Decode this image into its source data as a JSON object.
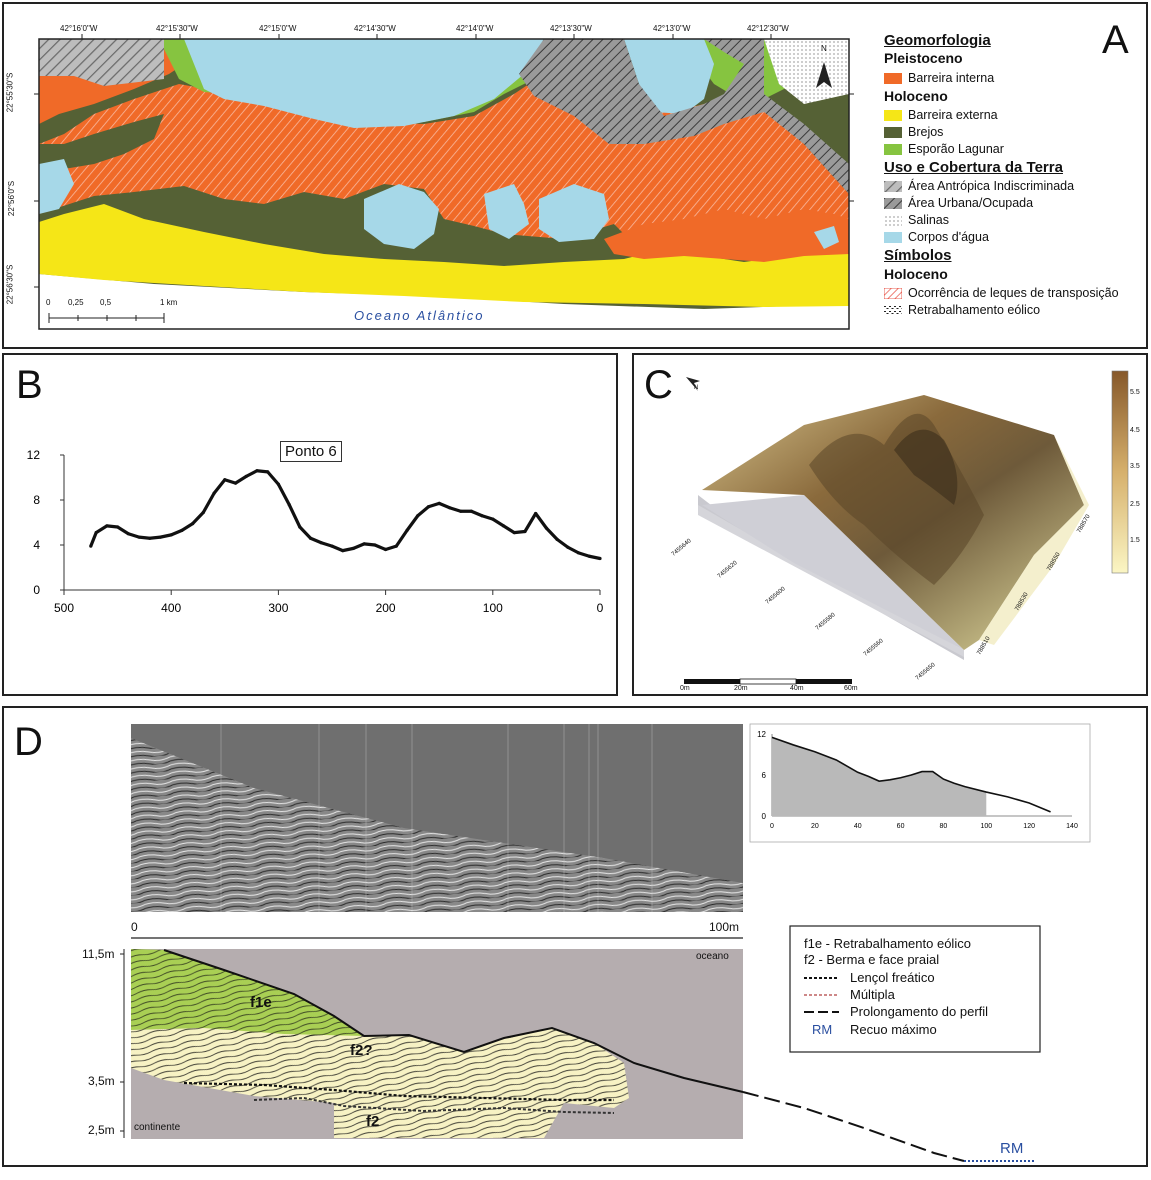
{
  "panels": {
    "a": "A",
    "b": "B",
    "c": "C",
    "d": "D"
  },
  "colors": {
    "barreira_interna": "#f06a28",
    "barreira_externa": "#f5e617",
    "brejos": "#556135",
    "esporao": "#86c440",
    "agua": "#a6d8e8",
    "urbana": "#8e8e8e",
    "antropica": "#a7a7a7",
    "f1e": "#a9cf54",
    "f2": "#f7f2c4"
  },
  "map": {
    "lon_ticks": [
      "42°16'0\"W",
      "42°15'30\"W",
      "42°15'0\"W",
      "42°14'30\"W",
      "42°14'0\"W",
      "42°13'30\"W",
      "42°13'0\"W",
      "42°12'30\"W"
    ],
    "lat_ticks": [
      "22°55'30\"S",
      "22°56'0\"S",
      "22°56'30\"S"
    ],
    "scale_labels": [
      "0",
      "0,25",
      "0,5",
      "1 km"
    ],
    "ocean": "Oceano Atlântico",
    "north": "N"
  },
  "legend": {
    "geomorfologia": "Geomorfologia",
    "pleistoceno": "Pleistoceno",
    "barreira_interna": "Barreira interna",
    "holoceno": "Holoceno",
    "barreira_externa": "Barreira externa",
    "brejos": "Brejos",
    "esporao": "Esporão Lagunar",
    "uso": "Uso e Cobertura da Terra",
    "antropica": "Área Antrópica Indiscriminada",
    "urbana": "Área Urbana/Ocupada",
    "salinas": "Salinas",
    "corpos": "Corpos d'água",
    "simbolos": "Símbolos",
    "holoceno2": "Holoceno",
    "leques": "Ocorrência de leques de transposição",
    "eolico": "Retrabalhamento eólico"
  },
  "profile_b": {
    "label": "Ponto 6",
    "x_ticks": [
      "500",
      "400",
      "300",
      "200",
      "100",
      "0"
    ],
    "y_ticks": [
      "12",
      "8",
      "4",
      "0"
    ]
  },
  "panel_c": {
    "colorbar_ticks": [
      "5.5",
      "4.5",
      "3.5",
      "2.5",
      "1.5"
    ],
    "scale_ticks": [
      "0m",
      "20m",
      "40m",
      "60m"
    ],
    "north": "N",
    "easting_ticks": [
      "7455650",
      "7455640",
      "7455620",
      "7455600",
      "7455580",
      "7455560"
    ],
    "northing_ticks": [
      "788510",
      "788530",
      "788550",
      "788570"
    ]
  },
  "panel_d": {
    "mini_y": [
      "12",
      "6",
      "0"
    ],
    "mini_x": [
      "0",
      "20",
      "40",
      "60",
      "80",
      "100",
      "120",
      "140"
    ],
    "scale_start": "0",
    "scale_end": "100m",
    "depths": [
      "11,5m",
      "3,5m",
      "2,5m"
    ],
    "oceano": "oceano",
    "continente": "continente",
    "f1e": "f1e",
    "f2q": "f2?",
    "f2": "f2",
    "rm": "RM",
    "legend": {
      "f1e": "f1e - Retrabalhamento eólico",
      "f2": "f2 - Berma e face praial",
      "lencol": "Lençol freático",
      "multipla": "Múltipla",
      "prolong": "Prolongamento do perfil",
      "rm_code": "RM",
      "rm": "Recuo máximo"
    }
  },
  "chart_data": [
    {
      "type": "line",
      "title": "Ponto 6",
      "xlabel": "",
      "ylabel": "",
      "xlim": [
        500,
        0
      ],
      "ylim": [
        0,
        12
      ],
      "x": [
        475,
        470,
        460,
        450,
        440,
        430,
        420,
        410,
        400,
        390,
        380,
        370,
        360,
        350,
        340,
        330,
        320,
        310,
        300,
        290,
        280,
        270,
        260,
        250,
        240,
        230,
        220,
        210,
        200,
        190,
        180,
        170,
        160,
        150,
        140,
        130,
        120,
        110,
        100,
        90,
        80,
        70,
        60,
        50,
        40,
        30,
        20,
        10,
        0
      ],
      "y": [
        3.9,
        5.1,
        5.7,
        5.6,
        5.0,
        4.7,
        4.6,
        4.7,
        4.9,
        5.3,
        5.9,
        6.9,
        8.6,
        9.8,
        9.5,
        10.1,
        10.6,
        10.5,
        9.4,
        7.6,
        5.6,
        4.6,
        4.2,
        3.9,
        3.5,
        3.7,
        4.1,
        4.0,
        3.6,
        3.9,
        5.3,
        6.6,
        7.4,
        7.7,
        7.3,
        7.0,
        7.0,
        6.6,
        6.3,
        5.7,
        5.1,
        5.2,
        6.8,
        5.5,
        4.5,
        3.8,
        3.3,
        3.0,
        2.8
      ]
    },
    {
      "type": "area",
      "title": "",
      "xlim": [
        0,
        140
      ],
      "ylim": [
        0,
        12
      ],
      "x": [
        0,
        10,
        20,
        30,
        40,
        45,
        50,
        55,
        60,
        65,
        70,
        75,
        80,
        85,
        90,
        100,
        110,
        120,
        130
      ],
      "y": [
        11.5,
        10.4,
        9.4,
        8.2,
        6.4,
        5.8,
        5.1,
        5.3,
        5.6,
        6.0,
        6.5,
        6.5,
        5.4,
        4.8,
        4.3,
        3.5,
        2.8,
        1.9,
        0.6
      ]
    }
  ]
}
